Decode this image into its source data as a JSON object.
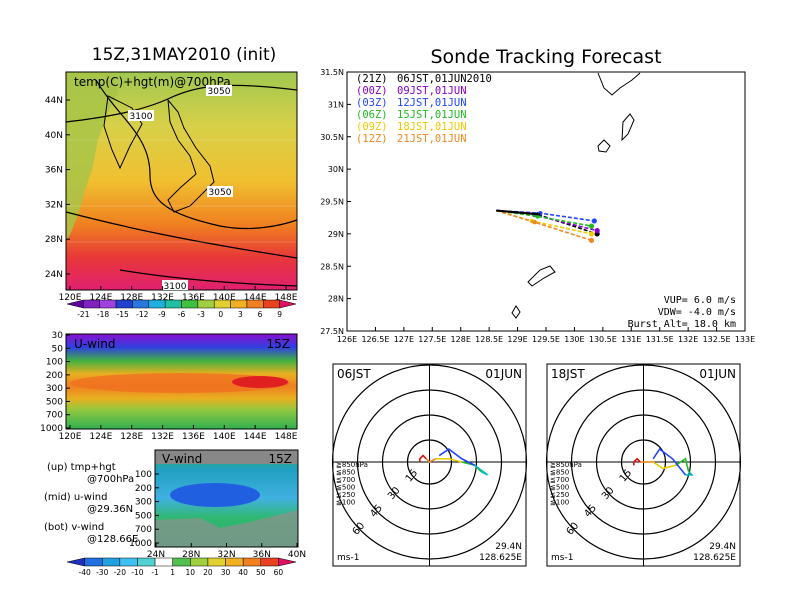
{
  "page": {
    "left_title": "15Z,31MAY2010 (init)",
    "right_title": "Sonde Tracking Forecast"
  },
  "colors": {
    "purple": "#8800cc",
    "blue": "#2244ff",
    "green": "#22bb22",
    "yellow": "#eecc00",
    "orange": "#ee8822",
    "red": "#dd1111",
    "black": "#000000"
  },
  "chart_data": [
    {
      "type": "heatmap",
      "name": "map_700hPa",
      "title": "temp(C)+hgt(m)@700hPa",
      "x_ticks": [
        "120E",
        "124E",
        "128E",
        "132E",
        "136E",
        "140E",
        "144E",
        "148E"
      ],
      "y_ticks": [
        "24N",
        "28N",
        "32N",
        "36N",
        "40N",
        "44N"
      ],
      "contour_labels": [
        "3050",
        "3100",
        "3050",
        "3100"
      ],
      "colorbar_ticks": [
        "-21",
        "-18",
        "-15",
        "-12",
        "-9",
        "-6",
        "-3",
        "0",
        "3",
        "6",
        "9"
      ]
    },
    {
      "type": "heatmap",
      "name": "u_wind",
      "title": "U-wind",
      "time_label": "15Z",
      "x_ticks": [
        "120E",
        "124E",
        "128E",
        "132E",
        "136E",
        "140E",
        "144E",
        "148E"
      ],
      "y_ticks": [
        "30",
        "50",
        "100",
        "200",
        "300",
        "500",
        "700",
        "1000"
      ]
    },
    {
      "type": "heatmap",
      "name": "v_wind",
      "title": "V-wind",
      "time_label": "15Z",
      "x_ticks": [
        "24N",
        "28N",
        "32N",
        "36N",
        "40N"
      ],
      "y_ticks": [
        "100",
        "200",
        "300",
        "500",
        "700",
        "1000"
      ],
      "colorbar_ticks": [
        "-40",
        "-30",
        "-20",
        "-10",
        "-1",
        "1",
        "10",
        "20",
        "30",
        "40",
        "50",
        "60"
      ]
    },
    {
      "type": "line",
      "name": "track_map",
      "x_ticks": [
        "126E",
        "126.5E",
        "127E",
        "127.5E",
        "128E",
        "128.5E",
        "129E",
        "129.5E",
        "130E",
        "130.5E",
        "131E",
        "131.5E",
        "132E",
        "132.5E",
        "133E"
      ],
      "y_ticks": [
        "27.5N",
        "28N",
        "28.5N",
        "29N",
        "29.5N",
        "30N",
        "30.5N",
        "31N",
        "31.5N"
      ],
      "xlim": [
        126,
        133
      ],
      "ylim": [
        27.5,
        31.5
      ],
      "start": [
        128.625,
        29.36
      ],
      "legend": [
        {
          "code": "(21Z)",
          "text": "06JST,01JUN2010",
          "color": "#000000"
        },
        {
          "code": "(00Z)",
          "text": "09JST,01JUN",
          "color": "#8800cc"
        },
        {
          "code": "(03Z)",
          "text": "12JST,01JUN",
          "color": "#2244ff"
        },
        {
          "code": "(06Z)",
          "text": "15JST,01JUN",
          "color": "#22bb22"
        },
        {
          "code": "(09Z)",
          "text": "18JST,01JUN",
          "color": "#eecc00"
        },
        {
          "code": "(12Z)",
          "text": "21JST,01JUN",
          "color": "#ee8822"
        }
      ],
      "series": [
        {
          "color": "#000000",
          "points": [
            [
              128.625,
              29.36
            ],
            [
              129.35,
              29.3
            ],
            [
              130.4,
              29.0
            ]
          ]
        },
        {
          "color": "#8800cc",
          "points": [
            [
              128.625,
              29.36
            ],
            [
              129.3,
              29.29
            ],
            [
              130.4,
              29.05
            ]
          ]
        },
        {
          "color": "#2244ff",
          "points": [
            [
              128.625,
              29.36
            ],
            [
              129.4,
              29.32
            ],
            [
              130.35,
              29.2
            ]
          ]
        },
        {
          "color": "#22bb22",
          "points": [
            [
              128.625,
              29.36
            ],
            [
              129.35,
              29.27
            ],
            [
              130.3,
              29.12
            ]
          ]
        },
        {
          "color": "#eecc00",
          "points": [
            [
              128.625,
              29.36
            ],
            [
              129.25,
              29.2
            ],
            [
              130.3,
              29.0
            ]
          ]
        },
        {
          "color": "#ee8822",
          "points": [
            [
              128.625,
              29.36
            ],
            [
              129.3,
              29.18
            ],
            [
              130.3,
              28.9
            ]
          ]
        }
      ],
      "params": [
        "VUP= 6.0 m/s",
        "VDW= -4.0 m/s",
        "Burst Alt= 18.0 km"
      ]
    },
    {
      "type": "line",
      "name": "hodograph_06JST",
      "time": "06JST",
      "date": "01JUN",
      "ring_labels": [
        "15",
        "30",
        "45",
        "60"
      ],
      "unit": "ms-1",
      "location": [
        "29.4N",
        "128.625E"
      ],
      "levels": [
        {
          "text": "≧850hPa",
          "color": "#dd1111"
        },
        {
          "text": "≦850",
          "color": "#ee8822"
        },
        {
          "text": "≦700",
          "color": "#eecc00"
        },
        {
          "text": "≦500",
          "color": "#22bb22"
        },
        {
          "text": "≦250",
          "color": "#00bbbb"
        },
        {
          "text": "≦100",
          "color": "#2244ff"
        }
      ],
      "segments": [
        {
          "color": "#dd1111",
          "uv": [
            [
              -3,
              0
            ],
            [
              -3,
              1
            ],
            [
              -2,
              2
            ],
            [
              -1,
              1
            ]
          ]
        },
        {
          "color": "#ee8822",
          "uv": [
            [
              -1,
              1
            ],
            [
              0,
              0
            ],
            [
              2,
              1
            ]
          ]
        },
        {
          "color": "#eecc00",
          "uv": [
            [
              2,
              1
            ],
            [
              6,
              1
            ],
            [
              10,
              0
            ]
          ]
        },
        {
          "color": "#22bb22",
          "uv": [
            [
              10,
              0
            ],
            [
              14,
              -1
            ],
            [
              16,
              -3
            ]
          ]
        },
        {
          "color": "#00bbbb",
          "uv": [
            [
              16,
              -3
            ],
            [
              18,
              -4
            ],
            [
              14,
              -1
            ]
          ]
        },
        {
          "color": "#2244ff",
          "uv": [
            [
              14,
              -1
            ],
            [
              10,
              1
            ],
            [
              6,
              4
            ],
            [
              3,
              2
            ]
          ]
        }
      ]
    },
    {
      "type": "line",
      "name": "hodograph_18JST",
      "time": "18JST",
      "date": "01JUN",
      "ring_labels": [
        "15",
        "30",
        "45",
        "60"
      ],
      "unit": "ms-1",
      "location": [
        "29.4N",
        "128.625E"
      ],
      "levels": [
        {
          "text": "≧850hPa",
          "color": "#dd1111"
        },
        {
          "text": "≦850",
          "color": "#ee8822"
        },
        {
          "text": "≦700",
          "color": "#eecc00"
        },
        {
          "text": "≦500",
          "color": "#22bb22"
        },
        {
          "text": "≦250",
          "color": "#00bbbb"
        },
        {
          "text": "≦100",
          "color": "#2244ff"
        }
      ],
      "segments": [
        {
          "color": "#dd1111",
          "uv": [
            [
              -3,
              -1
            ],
            [
              -3,
              0
            ],
            [
              -2,
              1
            ],
            [
              -1,
              0
            ]
          ]
        },
        {
          "color": "#ee8822",
          "uv": [
            [
              -1,
              0
            ],
            [
              1,
              0
            ],
            [
              3,
              0
            ]
          ]
        },
        {
          "color": "#eecc00",
          "uv": [
            [
              3,
              0
            ],
            [
              6,
              -2
            ],
            [
              10,
              -1
            ]
          ]
        },
        {
          "color": "#22bb22",
          "uv": [
            [
              10,
              -1
            ],
            [
              13,
              1
            ],
            [
              14,
              -3
            ]
          ]
        },
        {
          "color": "#00bbbb",
          "uv": [
            [
              14,
              -3
            ],
            [
              15,
              -4
            ],
            [
              13,
              -4
            ]
          ]
        },
        {
          "color": "#2244ff",
          "uv": [
            [
              13,
              -4
            ],
            [
              9,
              1
            ],
            [
              5,
              4
            ],
            [
              3,
              1
            ]
          ]
        }
      ]
    }
  ],
  "panel_notes": {
    "line1": "(up) tmp+hgt",
    "line2": "@700hPa",
    "line3": "(mid) u-wind",
    "line4": "@29.36N",
    "line5": "(bot) v-wind",
    "line6": "@128.66E"
  }
}
